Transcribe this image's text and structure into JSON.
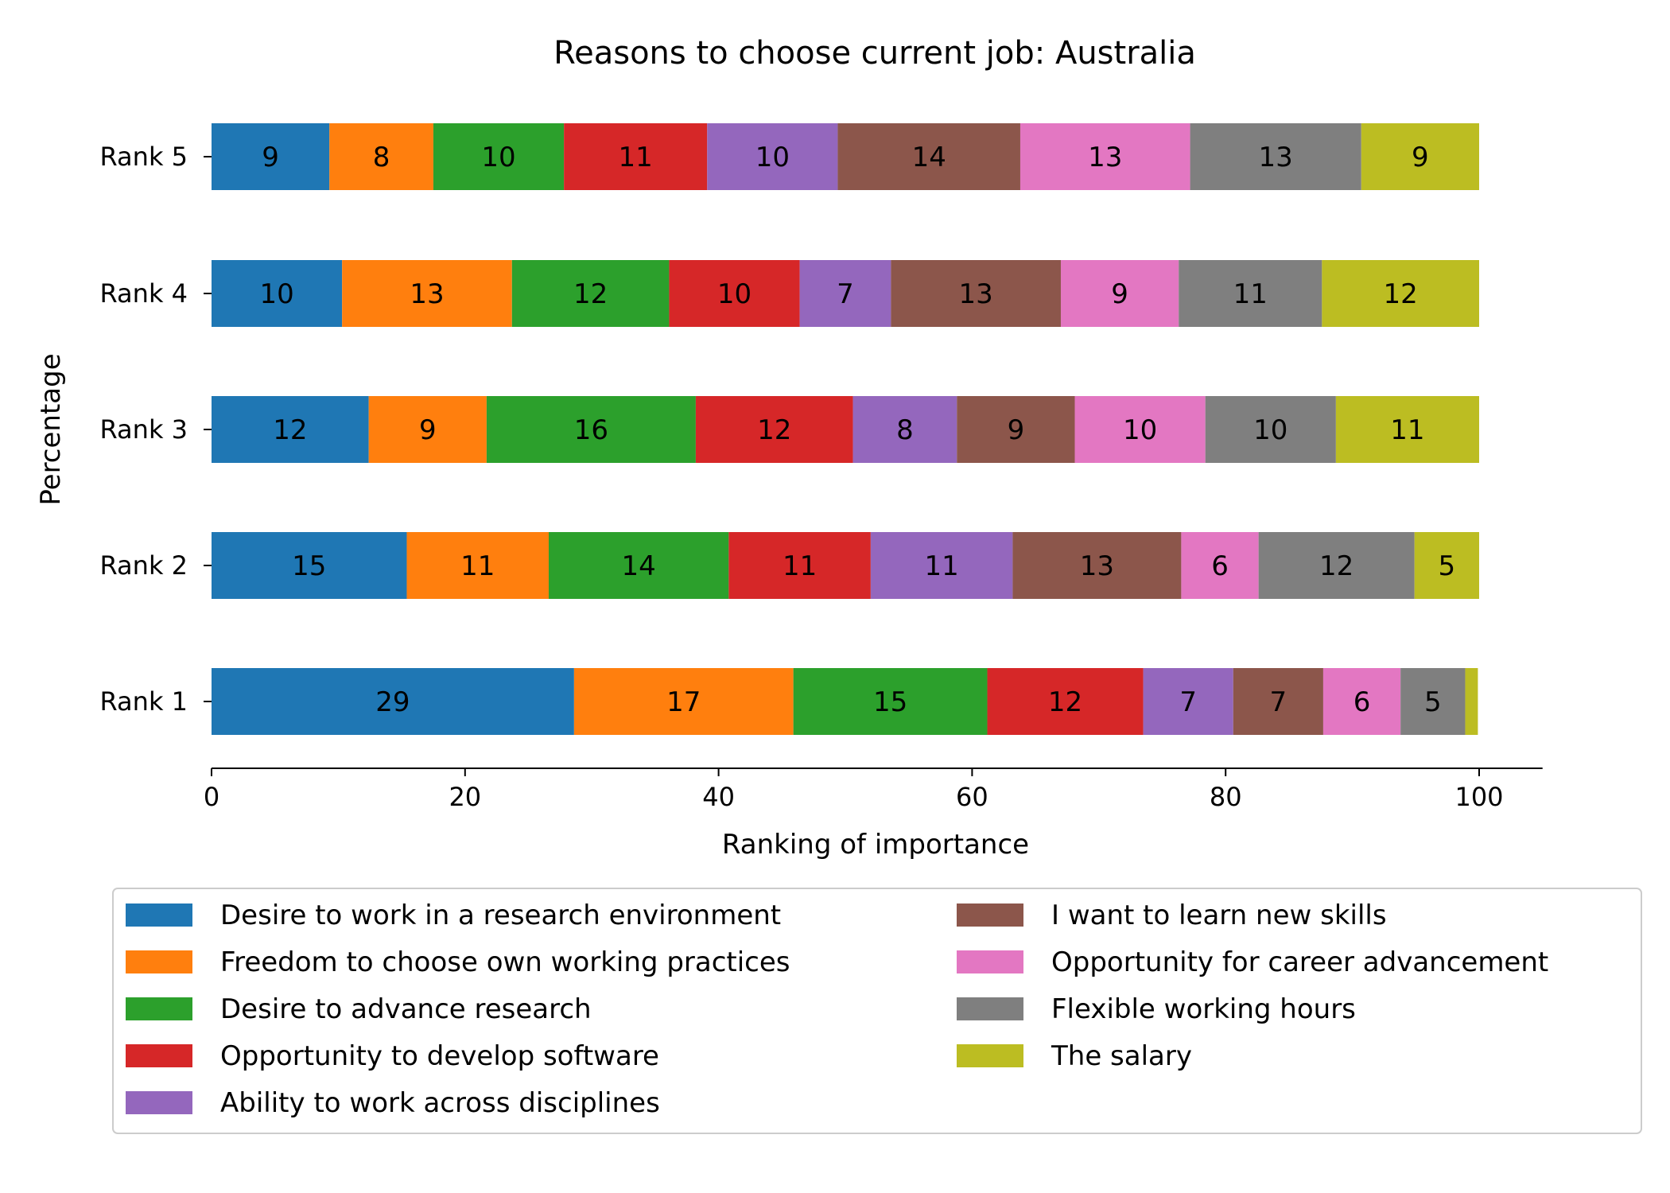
{
  "chart_data": {
    "type": "bar",
    "orientation": "horizontal",
    "stacked": true,
    "title": "Reasons to choose current job: Australia",
    "xlabel": "Ranking of importance",
    "ylabel": "Percentage",
    "xlim": [
      0,
      105
    ],
    "xticks": [
      "0",
      "20",
      "40",
      "60",
      "80",
      "100"
    ],
    "categories": [
      "Rank 1",
      "Rank 2",
      "Rank 3",
      "Rank 4",
      "Rank 5"
    ],
    "series": [
      {
        "name": "Desire to work in a research environment",
        "color": "#1f77b4",
        "values": [
          28.6,
          15.4,
          12.4,
          10.3,
          9.3
        ]
      },
      {
        "name": "Freedom to choose own working practices",
        "color": "#ff7f0e",
        "values": [
          17.3,
          11.2,
          9.3,
          13.4,
          8.2
        ]
      },
      {
        "name": "Desire to advance research",
        "color": "#2ca02c",
        "values": [
          15.3,
          14.2,
          16.5,
          12.4,
          10.3
        ]
      },
      {
        "name": "Opportunity to develop software",
        "color": "#d62728",
        "values": [
          12.3,
          11.2,
          12.4,
          10.3,
          11.3
        ]
      },
      {
        "name": "Ability to work across disciplines",
        "color": "#9467bd",
        "values": [
          7.1,
          11.2,
          8.2,
          7.2,
          10.3
        ]
      },
      {
        "name": "I want to learn new skills",
        "color": "#8c564b",
        "values": [
          7.1,
          13.3,
          9.3,
          13.4,
          14.4
        ]
      },
      {
        "name": "Opportunity for career advancement",
        "color": "#e377c2",
        "values": [
          6.1,
          6.1,
          10.3,
          9.3,
          13.4
        ]
      },
      {
        "name": "Flexible working hours",
        "color": "#7f7f7f",
        "values": [
          5.1,
          12.3,
          10.3,
          11.3,
          13.5
        ]
      },
      {
        "name": "The salary",
        "color": "#bcbd22",
        "values": [
          1.0,
          5.1,
          11.3,
          12.4,
          9.3
        ]
      }
    ],
    "bar_labels": [
      [
        "29",
        "15",
        "12",
        "10",
        "9"
      ],
      [
        "17",
        "11",
        "9",
        "13",
        "8"
      ],
      [
        "15",
        "14",
        "16",
        "12",
        "10"
      ],
      [
        "12",
        "11",
        "12",
        "10",
        "11"
      ],
      [
        "7",
        "11",
        "8",
        "7",
        "10"
      ],
      [
        "7",
        "13",
        "9",
        "13",
        "14"
      ],
      [
        "6",
        "6",
        "10",
        "9",
        "13"
      ],
      [
        "5",
        "12",
        "10",
        "11",
        "13"
      ],
      [
        "",
        "5",
        "11",
        "12",
        "9"
      ]
    ],
    "legend_position": "bottom",
    "legend_columns": 2,
    "grid": false
  }
}
